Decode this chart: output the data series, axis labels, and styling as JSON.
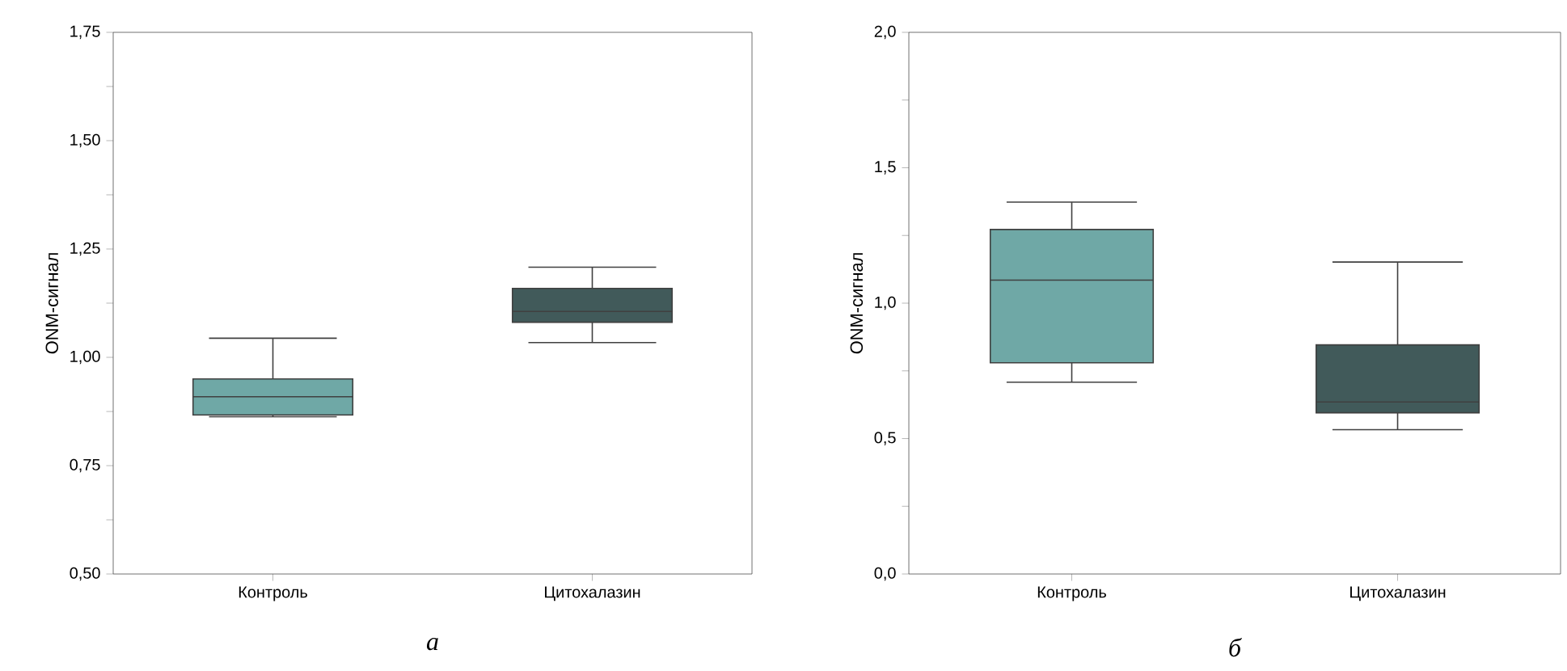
{
  "chart_data": [
    {
      "type": "box",
      "ylabel": "ONM-сигнал",
      "categories": [
        "Контроль",
        "Цитохалазин"
      ],
      "boxes": [
        {
          "low": 0.863,
          "q1": 0.867,
          "median": 0.909,
          "q3": 0.95,
          "high": 1.044
        },
        {
          "low": 1.034,
          "q1": 1.081,
          "median": 1.106,
          "q3": 1.159,
          "high": 1.208
        }
      ],
      "colors": [
        "#6fa8a6",
        "#415a5a"
      ],
      "ylim": [
        0.5,
        1.75
      ],
      "yticks": [
        {
          "value": 0.5,
          "label": "0,50"
        },
        {
          "value": 0.625,
          "label": null
        },
        {
          "value": 0.75,
          "label": "0,75"
        },
        {
          "value": 0.875,
          "label": null
        },
        {
          "value": 1.0,
          "label": "1,00"
        },
        {
          "value": 1.125,
          "label": null
        },
        {
          "value": 1.25,
          "label": "1,25"
        },
        {
          "value": 1.375,
          "label": null
        },
        {
          "value": 1.5,
          "label": "1,50"
        },
        {
          "value": 1.625,
          "label": null
        },
        {
          "value": 1.75,
          "label": "1,75"
        }
      ],
      "annotations": [
        "а"
      ]
    },
    {
      "type": "box",
      "ylabel": "ONM-сигнал",
      "categories": [
        "Контроль",
        "Цитохалазин"
      ],
      "boxes": [
        {
          "low": 0.708,
          "q1": 0.78,
          "median": 1.085,
          "q3": 1.272,
          "high": 1.373
        },
        {
          "low": 0.533,
          "q1": 0.595,
          "median": 0.635,
          "q3": 0.846,
          "high": 1.152
        }
      ],
      "colors": [
        "#6fa8a6",
        "#415a5a"
      ],
      "ylim": [
        0.0,
        2.0
      ],
      "yticks": [
        {
          "value": 0.0,
          "label": "0,0"
        },
        {
          "value": 0.25,
          "label": null
        },
        {
          "value": 0.5,
          "label": "0,5"
        },
        {
          "value": 0.75,
          "label": null
        },
        {
          "value": 1.0,
          "label": "1,0"
        },
        {
          "value": 1.25,
          "label": null
        },
        {
          "value": 1.5,
          "label": "1,5"
        },
        {
          "value": 1.75,
          "label": null
        },
        {
          "value": 2.0,
          "label": "2,0"
        }
      ],
      "annotations": [
        "б"
      ]
    }
  ]
}
